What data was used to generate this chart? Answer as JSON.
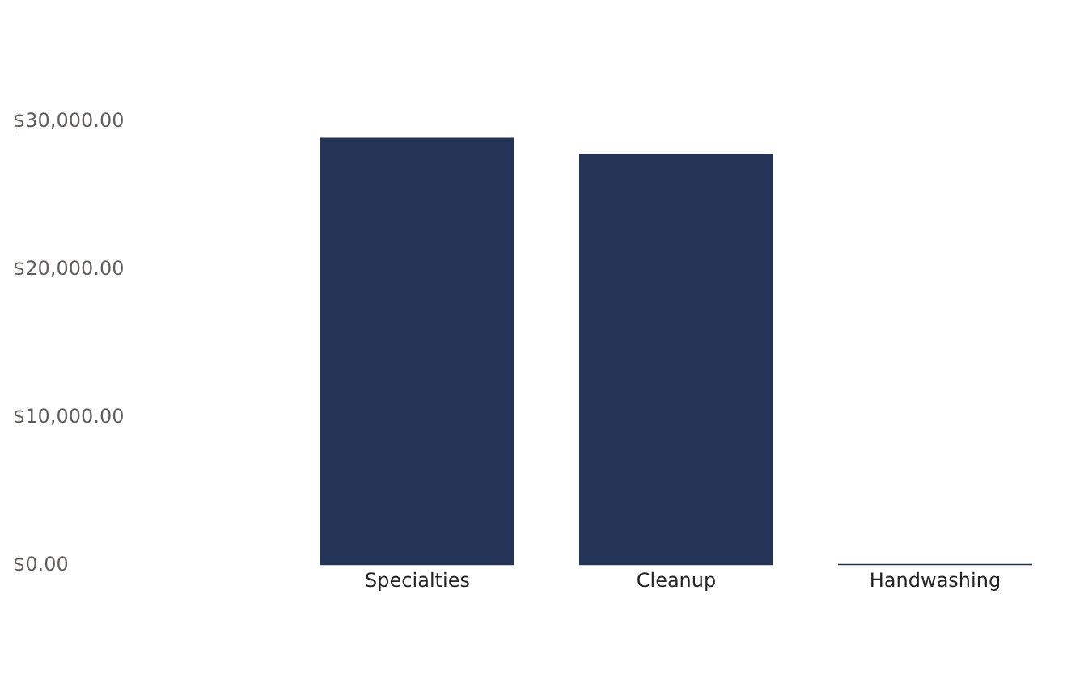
{
  "chart_data": {
    "type": "bar",
    "categories": [
      "Specialties",
      "Cleanup",
      "Handwashing"
    ],
    "values": [
      28900,
      27800,
      100
    ],
    "color": "#233457",
    "ylim": [
      0,
      30000
    ],
    "yticks": [
      {
        "value": 0,
        "label": "$0.00"
      },
      {
        "value": 10000,
        "label": "$10,000.00"
      },
      {
        "value": 20000,
        "label": "$20,000.00"
      },
      {
        "value": 30000,
        "label": "$30,000.00"
      }
    ],
    "grid": false,
    "legend": false
  }
}
